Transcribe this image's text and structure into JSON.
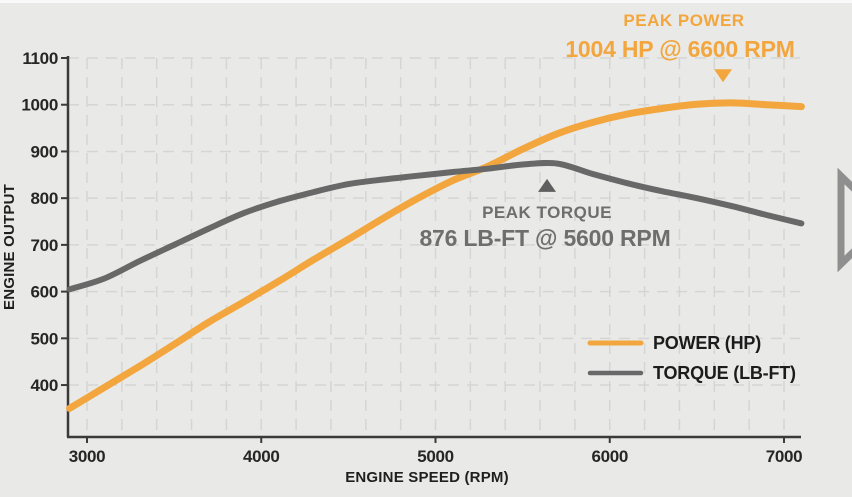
{
  "page": {
    "background": "#e9e9e8",
    "kind": "engine dyno chart"
  },
  "chart_data": {
    "type": "line",
    "title": "",
    "xlabel": "ENGINE SPEED (RPM)",
    "ylabel": "ENGINE OUTPUT",
    "x_ticks": [
      3000,
      4000,
      5000,
      6000,
      7000
    ],
    "y_ticks": [
      400,
      500,
      600,
      700,
      800,
      900,
      1000,
      1100
    ],
    "xlim": [
      2890,
      7100
    ],
    "ylim": [
      290,
      1100
    ],
    "grid": {
      "on": true,
      "x_step_rpm": 200,
      "y_step": 100,
      "color": "#d5d5d3",
      "style": "dashed"
    },
    "x": [
      2900,
      3100,
      3300,
      3500,
      3700,
      3900,
      4100,
      4300,
      4500,
      4700,
      4900,
      5100,
      5300,
      5500,
      5700,
      5900,
      6100,
      6300,
      6500,
      6700,
      6900,
      7100
    ],
    "series": [
      {
        "name": "POWER (HP)",
        "color": "#F2A63D",
        "values": [
          350,
          395,
          440,
          487,
          535,
          578,
          622,
          668,
          712,
          757,
          800,
          838,
          868,
          905,
          938,
          962,
          980,
          992,
          1001,
          1004,
          1000,
          996
        ]
      },
      {
        "name": "TORQUE (LB-FT)",
        "color": "#686868",
        "values": [
          605,
          628,
          665,
          700,
          735,
          768,
          793,
          813,
          830,
          840,
          848,
          856,
          863,
          872,
          874,
          852,
          832,
          815,
          800,
          783,
          764,
          746
        ]
      }
    ],
    "annotations": [
      {
        "id": "peak-power",
        "line1": "PEAK POWER",
        "line2": "1004 HP @ 6600 RPM",
        "peak_value": 1004,
        "peak_rpm": 6600,
        "marker": "triangle-down",
        "marker_rpm": 6650,
        "color": "#F2A63D"
      },
      {
        "id": "peak-torque",
        "line1": "PEAK TORQUE",
        "line2": "876 LB-FT @ 5600 RPM",
        "peak_value": 876,
        "peak_rpm": 5600,
        "marker": "triangle-up",
        "marker_rpm": 5640,
        "color": "#6e6e6e"
      }
    ],
    "legend": {
      "position": "bottom-right",
      "items": [
        "POWER (HP)",
        "TORQUE (LB-FT)"
      ]
    },
    "axis_color": "#3a3a3a",
    "tick_label_color": "#262626"
  },
  "next_arrow": {
    "color": "#8f8f8f",
    "direction": "right"
  }
}
